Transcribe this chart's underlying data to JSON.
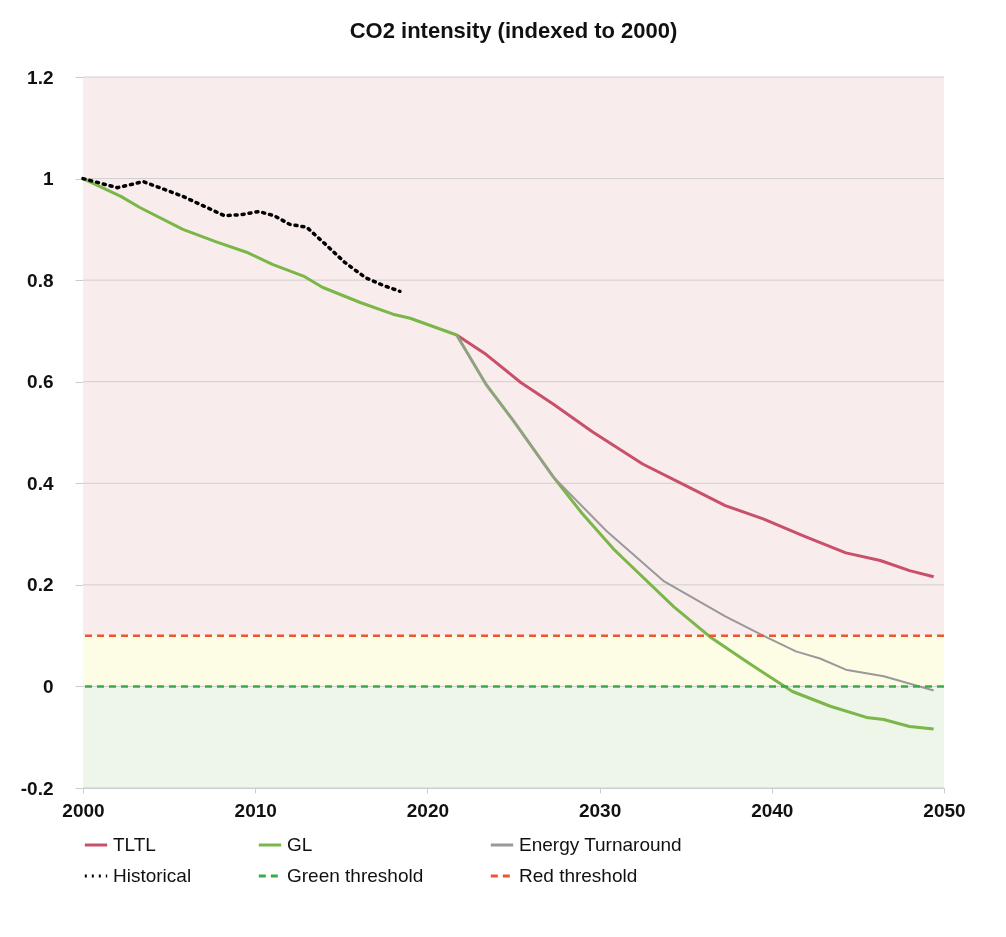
{
  "chart_data": {
    "type": "line",
    "title": "CO2 intensity (indexed to 2000)",
    "xlim": [
      2000,
      2050
    ],
    "xticks": [
      2000,
      2010,
      2020,
      2030,
      2040,
      2050
    ],
    "ylim": [
      -0.2,
      1.2
    ],
    "yticks": [
      -0.2,
      0,
      0.2,
      0.4,
      0.6,
      0.8,
      1,
      1.2
    ],
    "grid": "y",
    "legend": "bottom",
    "marker": "none",
    "series": [
      {
        "name": "TLTL",
        "color": "#c9506b",
        "line_style": "solid",
        "x": [
          2021.7,
          2023.4,
          2025.4,
          2027.3,
          2029.6,
          2032.5,
          2034.8,
          2037.3,
          2039.5,
          2041.8,
          2044.3,
          2046.3,
          2048.0,
          2049.4
        ],
        "values": [
          0.692,
          0.654,
          0.599,
          0.556,
          0.501,
          0.438,
          0.399,
          0.356,
          0.33,
          0.297,
          0.263,
          0.248,
          0.228,
          0.216
        ]
      },
      {
        "name": "GL",
        "color": "#7ab648",
        "line_style": "solid",
        "x": [
          2000,
          2002.2,
          2003.3,
          2005.8,
          2007.7,
          2009.5,
          2011.0,
          2012.8,
          2013.9,
          2016.1,
          2018.0,
          2019.0,
          2021.7,
          2023.4,
          2025.0,
          2027.3,
          2029.0,
          2030.8,
          2031.5,
          2034.3,
          2036.4,
          2038.7,
          2041.2,
          2043.4,
          2045.5,
          2046.5,
          2048.0,
          2049.4
        ],
        "values": [
          1.0,
          0.965,
          0.943,
          0.9,
          0.876,
          0.855,
          0.831,
          0.808,
          0.786,
          0.756,
          0.733,
          0.725,
          0.692,
          0.595,
          0.523,
          0.413,
          0.34,
          0.271,
          0.248,
          0.157,
          0.098,
          0.045,
          -0.01,
          -0.039,
          -0.061,
          -0.065,
          -0.079,
          -0.084
        ]
      },
      {
        "name": "Energy Turnaround",
        "color": "#999999",
        "line_style": "solid",
        "x": [
          2021.7,
          2023.4,
          2025.0,
          2027.3,
          2030.4,
          2033.7,
          2037.3,
          2039.5,
          2041.4,
          2042.8,
          2044.3,
          2046.5,
          2049.4
        ],
        "values": [
          0.692,
          0.595,
          0.523,
          0.413,
          0.306,
          0.208,
          0.138,
          0.1,
          0.069,
          0.055,
          0.033,
          0.02,
          -0.008
        ]
      },
      {
        "name": "Historical",
        "color": "#000000",
        "line_style": "dotted",
        "x": [
          2000,
          2002.0,
          2003.5,
          2005.8,
          2007.7,
          2008.2,
          2009.2,
          2010.2,
          2011.1,
          2012.0,
          2013.0,
          2014.1,
          2015.2,
          2016.4,
          2017.4,
          2018.4
        ],
        "values": [
          1.0,
          0.982,
          0.994,
          0.965,
          0.935,
          0.927,
          0.929,
          0.935,
          0.927,
          0.91,
          0.904,
          0.87,
          0.835,
          0.805,
          0.79,
          0.778
        ]
      }
    ],
    "ref_lines": [
      {
        "axis": "y",
        "value": 0,
        "label": "Green threshold",
        "color": "#3aaa4a",
        "line_style": "dashed"
      },
      {
        "axis": "y",
        "value": 0.1,
        "label": "Red threshold",
        "color": "#ee5533",
        "line_style": "dashed"
      }
    ],
    "bands": [
      {
        "axis": "y",
        "from": 0.1,
        "to": 1.2,
        "color": "#f9ecec"
      },
      {
        "axis": "y",
        "from": 0,
        "to": 0.1,
        "color": "#fdfde6"
      },
      {
        "axis": "y",
        "from": -0.2,
        "to": 0,
        "color": "#eef5e9"
      }
    ]
  }
}
